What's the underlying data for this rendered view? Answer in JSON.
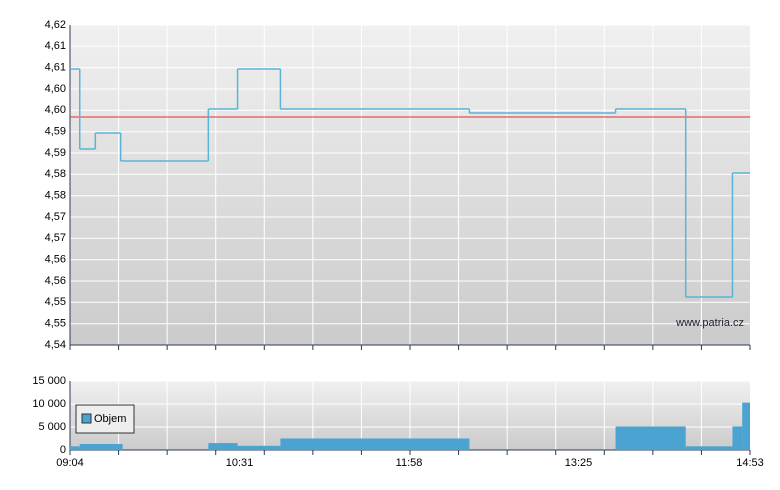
{
  "chart_data": [
    {
      "type": "line",
      "step": true,
      "x": [
        "09:04",
        "09:09",
        "09:17",
        "09:30",
        "10:15",
        "10:30",
        "10:52",
        "12:29",
        "13:44",
        "14:20",
        "14:44",
        "14:53"
      ],
      "values": [
        4.609,
        4.589,
        4.593,
        4.586,
        4.599,
        4.609,
        4.599,
        4.598,
        4.599,
        4.552,
        4.583,
        4.583
      ],
      "color": "#5ab4d8",
      "reference_line": {
        "value": 4.597,
        "color": "#e03030"
      },
      "watermark": "www.patria.cz",
      "xlim": [
        "09:04",
        "14:53"
      ],
      "ylim": [
        4.54,
        4.62
      ],
      "yticks": [
        {
          "value": 4.62,
          "label": "4,62"
        },
        {
          "value": 4.6147,
          "label": "4,61"
        },
        {
          "value": 4.6093,
          "label": "4,61"
        },
        {
          "value": 4.604,
          "label": "4,60"
        },
        {
          "value": 4.5987,
          "label": "4,60"
        },
        {
          "value": 4.5933,
          "label": "4,59"
        },
        {
          "value": 4.588,
          "label": "4,59"
        },
        {
          "value": 4.5827,
          "label": "4,58"
        },
        {
          "value": 4.5773,
          "label": "4,58"
        },
        {
          "value": 4.572,
          "label": "4,57"
        },
        {
          "value": 4.5667,
          "label": "4,57"
        },
        {
          "value": 4.5613,
          "label": "4,56"
        },
        {
          "value": 4.556,
          "label": "4,56"
        },
        {
          "value": 4.5507,
          "label": "4,55"
        },
        {
          "value": 4.5453,
          "label": "4,55"
        },
        {
          "value": 4.54,
          "label": "4,54"
        }
      ],
      "grid": true
    },
    {
      "type": "bar",
      "x": [
        "09:04",
        "09:09",
        "10:15",
        "10:30",
        "10:52",
        "13:44",
        "14:20",
        "14:44",
        "14:49"
      ],
      "x_end": [
        "09:09",
        "09:31",
        "10:30",
        "10:52",
        "12:29",
        "14:20",
        "14:44",
        "14:49",
        "14:53"
      ],
      "series": [
        {
          "name": "Objem",
          "color": "#4aa3d0",
          "values": [
            800,
            1300,
            1500,
            900,
            2500,
            5100,
            800,
            5100,
            10300
          ]
        }
      ],
      "legend": "upper left",
      "xlim": [
        "09:04",
        "14:53"
      ],
      "xticks": [
        "09:04",
        "10:31",
        "11:58",
        "13:25",
        "14:53"
      ],
      "ylim": [
        0,
        15000
      ],
      "yticks": [
        0,
        {
          "value": 5000,
          "label": "5 000"
        },
        {
          "value": 10000,
          "label": "10 000"
        },
        {
          "value": 15000,
          "label": "15 000"
        }
      ],
      "grid": true
    }
  ]
}
